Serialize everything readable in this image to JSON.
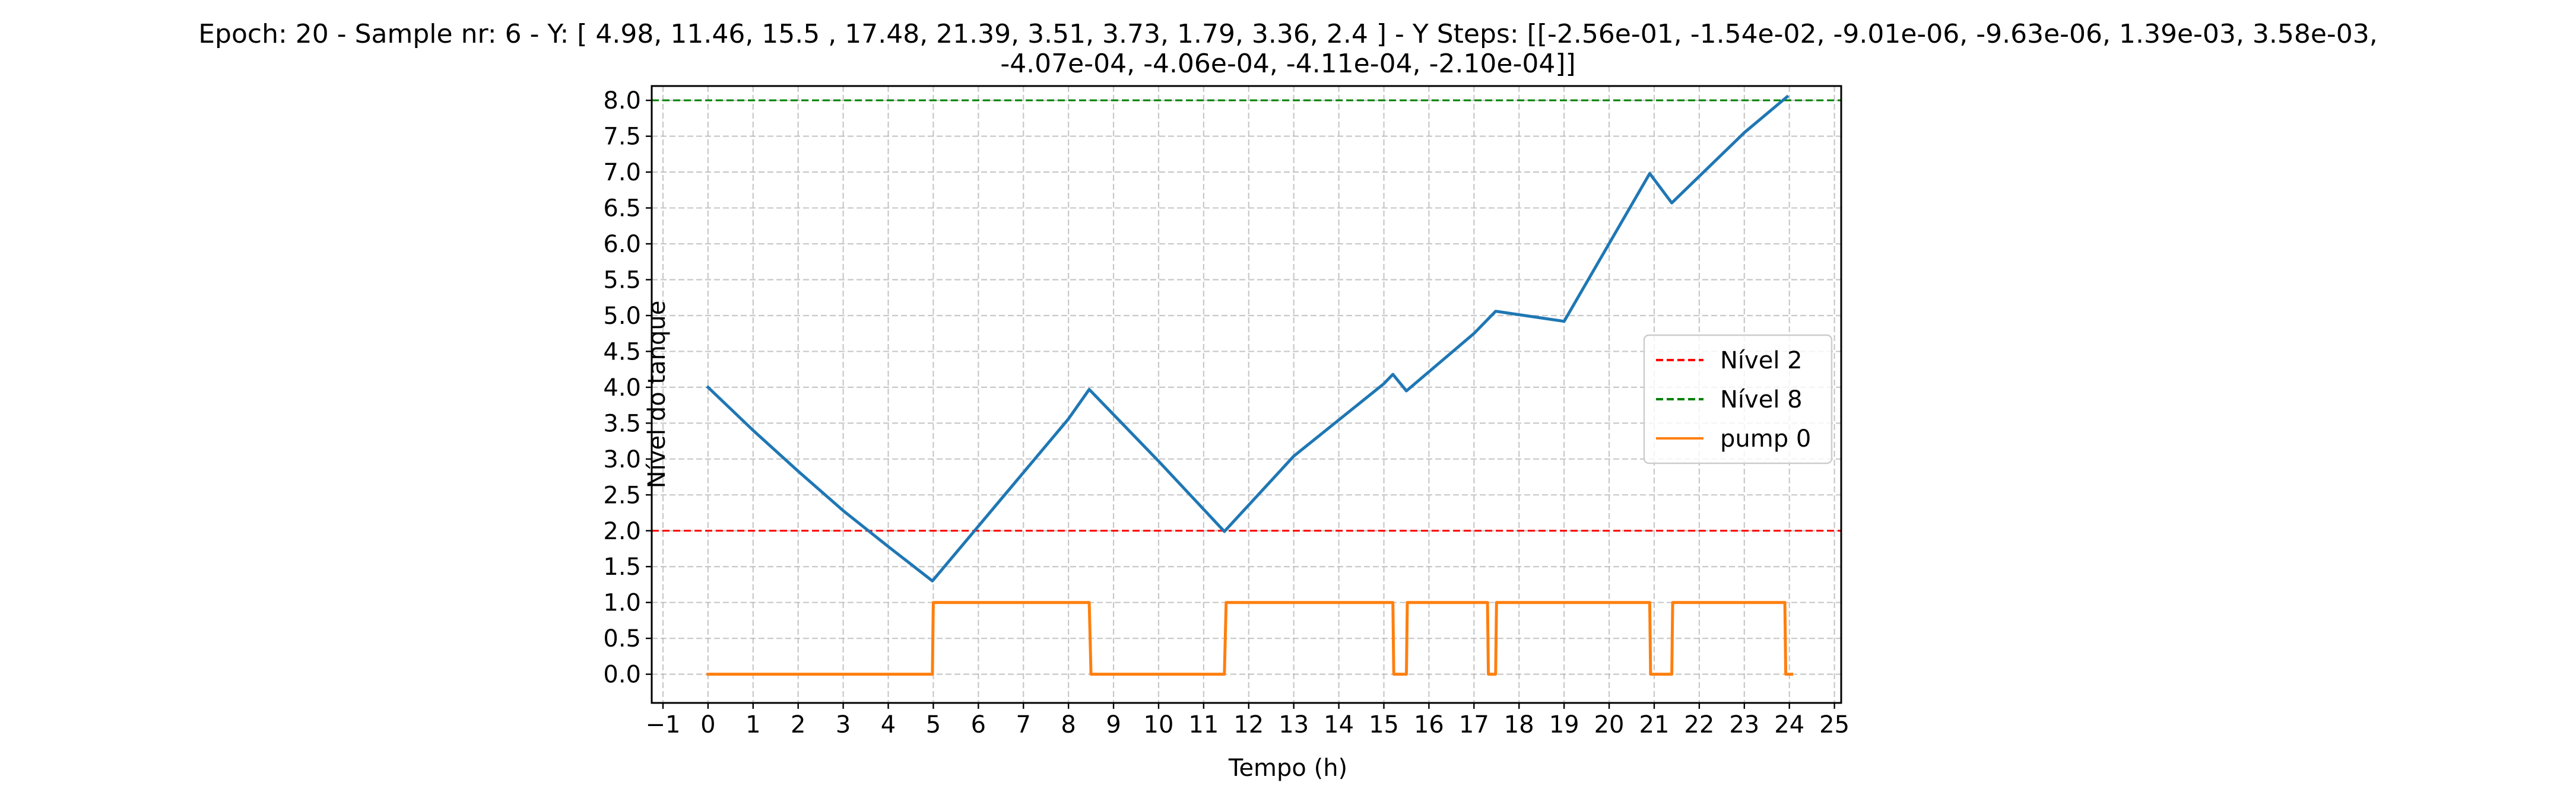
{
  "chart_data": {
    "type": "line",
    "title_line1": "Epoch: 20 - Sample nr: 6 - Y: [ 4.98, 11.46, 15.5 , 17.48, 21.39,  3.51,  3.73,  1.79,  3.36,  2.4 ] - Y Steps: [[-2.56e-01, -1.54e-02, -9.01e-06, -9.63e-06,  1.39e-03,  3.58e-03,",
    "title_line2": "-4.07e-04, -4.06e-04, -4.11e-04, -2.10e-04]]",
    "xlabel": "Tempo (h)",
    "ylabel": "Nível do tanque",
    "xlim": [
      -1.25,
      25.15
    ],
    "ylim": [
      -0.4,
      8.2
    ],
    "xticks": [
      -1,
      0,
      1,
      2,
      3,
      4,
      5,
      6,
      7,
      8,
      9,
      10,
      11,
      12,
      13,
      14,
      15,
      16,
      17,
      18,
      19,
      20,
      21,
      22,
      23,
      24,
      25
    ],
    "xtick_labels": [
      "−1",
      "0",
      "1",
      "2",
      "3",
      "4",
      "5",
      "6",
      "7",
      "8",
      "9",
      "10",
      "11",
      "12",
      "13",
      "14",
      "15",
      "16",
      "17",
      "18",
      "19",
      "20",
      "21",
      "22",
      "23",
      "24",
      "25"
    ],
    "yticks": [
      0,
      0.5,
      1,
      1.5,
      2,
      2.5,
      3,
      3.5,
      4,
      4.5,
      5,
      5.5,
      6,
      6.5,
      7,
      7.5,
      8
    ],
    "ytick_labels": [
      "0.0",
      "0.5",
      "1.0",
      "1.5",
      "2.0",
      "2.5",
      "3.0",
      "3.5",
      "4.0",
      "4.5",
      "5.0",
      "5.5",
      "6.0",
      "6.5",
      "7.0",
      "7.5",
      "8.0"
    ],
    "grid": true,
    "legend_position": "center-right",
    "hlines": [
      {
        "name": "Nível 2",
        "y": 2,
        "color": "#ff0000",
        "style": "dashed"
      },
      {
        "name": "Nível 8",
        "y": 8,
        "color": "#008000",
        "style": "dashed"
      }
    ],
    "series": [
      {
        "color": "#1f77b4",
        "x": [
          0,
          1,
          2,
          3,
          4,
          4.98,
          8.0,
          8.46,
          10,
          11.46,
          13,
          15.0,
          15.2,
          15.5,
          17.0,
          17.48,
          19.0,
          20.9,
          21.39,
          23.0,
          23.95
        ],
        "y": [
          4.0,
          3.4,
          2.83,
          2.28,
          1.78,
          1.3,
          3.56,
          3.97,
          2.97,
          1.99,
          3.04,
          4.05,
          4.18,
          3.95,
          4.75,
          5.06,
          4.92,
          6.98,
          6.57,
          7.55,
          8.05
        ]
      },
      {
        "name": "pump 0",
        "color": "#ff7f0e",
        "x": [
          0,
          4.98,
          5.0,
          8.46,
          8.5,
          11.46,
          11.5,
          15.2,
          15.22,
          15.5,
          15.52,
          17.3,
          17.32,
          17.48,
          17.5,
          20.9,
          20.92,
          21.39,
          21.41,
          23.9,
          23.92,
          24.05
        ],
        "y": [
          0,
          0,
          1,
          1,
          0,
          0,
          1,
          1,
          0,
          0,
          1,
          1,
          0,
          0,
          1,
          1,
          0,
          0,
          1,
          1,
          0,
          0
        ]
      }
    ]
  }
}
